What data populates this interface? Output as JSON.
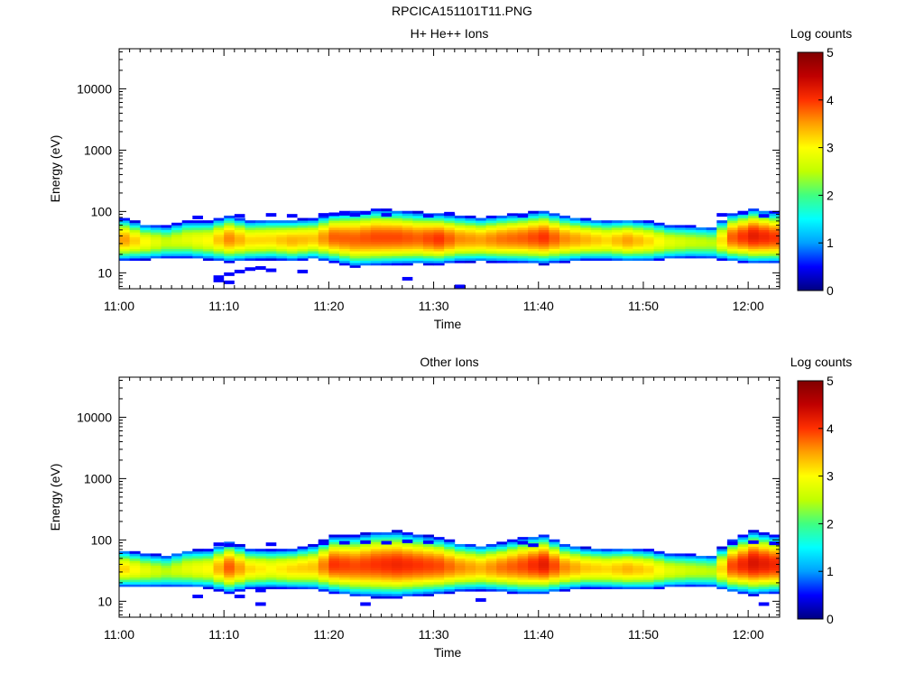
{
  "page": {
    "title": "RPCICA151101T11.PNG"
  },
  "colors": {
    "colorbar_stops": [
      "#000080",
      "#0000ff",
      "#00a0ff",
      "#00ffff",
      "#40ff80",
      "#c0ff00",
      "#ffff00",
      "#ffa000",
      "#ff3000",
      "#c00000",
      "#800000"
    ],
    "axis": "#000000",
    "background": "#ffffff"
  },
  "chart_data": [
    {
      "type": "heatmap",
      "title": "H+ He++ Ions",
      "xlabel": "Time",
      "ylabel": "Energy (eV)",
      "y_scale": "log",
      "xlim": [
        "11:00",
        "12:03"
      ],
      "ylim": [
        5.5,
        45000
      ],
      "x_ticks": [
        "11:00",
        "11:10",
        "11:20",
        "11:30",
        "11:40",
        "11:50",
        "12:00"
      ],
      "y_ticks": [
        "10",
        "100",
        "1000",
        "10000"
      ],
      "colorbar": {
        "label": "Log counts",
        "range": [
          0,
          5
        ],
        "ticks": [
          "0",
          "1",
          "2",
          "3",
          "4",
          "5"
        ]
      },
      "band_profile": {
        "time_minutes": [
          0,
          2,
          4,
          6,
          8,
          10,
          12,
          14,
          16,
          18,
          20,
          22,
          24,
          26,
          28,
          30,
          32,
          34,
          36,
          38,
          40,
          42,
          44,
          46,
          48,
          50,
          52,
          54,
          56,
          58,
          60,
          62
        ],
        "center_energy_eV": [
          35,
          32,
          32,
          35,
          34,
          36,
          34,
          35,
          34,
          36,
          38,
          36,
          38,
          38,
          37,
          36,
          36,
          35,
          36,
          37,
          38,
          36,
          35,
          34,
          34,
          33,
          32,
          32,
          31,
          38,
          40,
          38
        ],
        "peak_log_counts": [
          3.5,
          3.0,
          2.6,
          2.8,
          3.0,
          3.6,
          3.2,
          3.2,
          3.4,
          3.3,
          3.8,
          3.8,
          3.9,
          3.9,
          3.8,
          4.0,
          3.6,
          3.5,
          3.7,
          3.8,
          4.0,
          3.6,
          3.4,
          3.2,
          3.5,
          3.2,
          2.8,
          2.6,
          2.5,
          3.8,
          4.2,
          4.0
        ],
        "band_width_dex": [
          0.22,
          0.2,
          0.2,
          0.22,
          0.22,
          0.24,
          0.22,
          0.22,
          0.22,
          0.22,
          0.25,
          0.28,
          0.28,
          0.27,
          0.26,
          0.25,
          0.24,
          0.23,
          0.24,
          0.25,
          0.26,
          0.24,
          0.22,
          0.22,
          0.22,
          0.22,
          0.2,
          0.2,
          0.2,
          0.24,
          0.26,
          0.25
        ]
      },
      "sporadic_low_counts": [
        {
          "t": 9.5,
          "e": 8.5
        },
        {
          "t": 10.5,
          "e": 9.5
        },
        {
          "t": 11.5,
          "e": 10.5
        },
        {
          "t": 12.5,
          "e": 11.5
        },
        {
          "t": 9.5,
          "e": 7.5
        },
        {
          "t": 10.5,
          "e": 7
        },
        {
          "t": 17.5,
          "e": 10.5
        },
        {
          "t": 27.5,
          "e": 8
        },
        {
          "t": 32.5,
          "e": 6
        },
        {
          "t": 13.5,
          "e": 12
        },
        {
          "t": 14.5,
          "e": 11
        },
        {
          "t": 11.5,
          "e": 85
        },
        {
          "t": 14.5,
          "e": 88
        },
        {
          "t": 19.5,
          "e": 88
        },
        {
          "t": 20.5,
          "e": 90
        },
        {
          "t": 21.5,
          "e": 92
        },
        {
          "t": 22.5,
          "e": 88
        },
        {
          "t": 23.5,
          "e": 95
        },
        {
          "t": 25.5,
          "e": 88
        },
        {
          "t": 29.5,
          "e": 85
        },
        {
          "t": 31.5,
          "e": 92
        },
        {
          "t": 38.5,
          "e": 85
        },
        {
          "t": 57.5,
          "e": 88
        },
        {
          "t": 59.5,
          "e": 95
        },
        {
          "t": 61.5,
          "e": 85
        },
        {
          "t": 7.5,
          "e": 80
        },
        {
          "t": 16.5,
          "e": 85
        }
      ]
    },
    {
      "type": "heatmap",
      "title": "Other Ions",
      "xlabel": "Time",
      "ylabel": "Energy (eV)",
      "y_scale": "log",
      "xlim": [
        "11:00",
        "12:03"
      ],
      "ylim": [
        5.5,
        45000
      ],
      "x_ticks": [
        "11:00",
        "11:10",
        "11:20",
        "11:30",
        "11:40",
        "11:50",
        "12:00"
      ],
      "y_ticks": [
        "10",
        "100",
        "1000",
        "10000"
      ],
      "colorbar": {
        "label": "Log counts",
        "range": [
          0,
          5
        ],
        "ticks": [
          "0",
          "1",
          "2",
          "3",
          "4",
          "5"
        ]
      },
      "band_profile": {
        "time_minutes": [
          0,
          2,
          4,
          6,
          8,
          10,
          12,
          14,
          16,
          18,
          20,
          22,
          24,
          26,
          28,
          30,
          32,
          34,
          36,
          38,
          40,
          42,
          44,
          46,
          48,
          50,
          52,
          54,
          56,
          58,
          60,
          62
        ],
        "center_energy_eV": [
          34,
          32,
          31,
          34,
          34,
          36,
          34,
          34,
          34,
          36,
          40,
          38,
          40,
          40,
          39,
          38,
          36,
          35,
          36,
          38,
          40,
          36,
          35,
          34,
          34,
          33,
          32,
          32,
          31,
          38,
          42,
          40
        ],
        "peak_log_counts": [
          3.2,
          2.8,
          2.5,
          2.8,
          3.0,
          3.8,
          3.2,
          3.0,
          3.2,
          3.3,
          4.0,
          3.9,
          4.0,
          4.1,
          4.0,
          3.9,
          3.6,
          3.4,
          3.7,
          3.9,
          4.2,
          3.6,
          3.3,
          3.2,
          3.4,
          3.2,
          2.8,
          2.6,
          2.5,
          3.9,
          4.3,
          4.1
        ],
        "band_width_dex": [
          0.2,
          0.2,
          0.2,
          0.22,
          0.22,
          0.26,
          0.22,
          0.22,
          0.22,
          0.24,
          0.28,
          0.3,
          0.32,
          0.32,
          0.3,
          0.28,
          0.25,
          0.24,
          0.25,
          0.28,
          0.28,
          0.24,
          0.22,
          0.22,
          0.22,
          0.22,
          0.2,
          0.2,
          0.2,
          0.26,
          0.3,
          0.28
        ]
      },
      "sporadic_low_counts": [
        {
          "t": 7.5,
          "e": 12
        },
        {
          "t": 11.5,
          "e": 12
        },
        {
          "t": 13.5,
          "e": 9
        },
        {
          "t": 23.5,
          "e": 9
        },
        {
          "t": 34.5,
          "e": 10.5
        },
        {
          "t": 13.5,
          "e": 15
        },
        {
          "t": 61.5,
          "e": 9
        },
        {
          "t": 9.5,
          "e": 85
        },
        {
          "t": 10.5,
          "e": 82
        },
        {
          "t": 14.5,
          "e": 85
        },
        {
          "t": 19.5,
          "e": 88
        },
        {
          "t": 21.5,
          "e": 90
        },
        {
          "t": 23.5,
          "e": 92
        },
        {
          "t": 25.5,
          "e": 90
        },
        {
          "t": 27.5,
          "e": 95
        },
        {
          "t": 29.5,
          "e": 92
        },
        {
          "t": 38.5,
          "e": 90
        },
        {
          "t": 39.5,
          "e": 82
        },
        {
          "t": 58.5,
          "e": 88
        },
        {
          "t": 60.5,
          "e": 92
        },
        {
          "t": 62.5,
          "e": 88
        }
      ]
    }
  ]
}
